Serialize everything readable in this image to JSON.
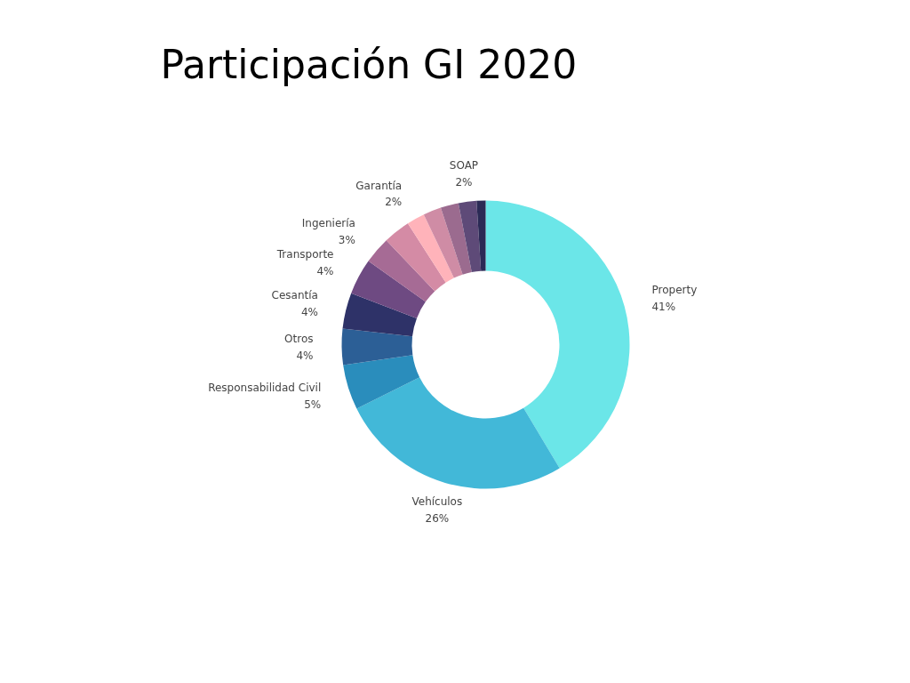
{
  "chart_data": {
    "type": "donut",
    "title": "Participación GI 2020",
    "categories": [
      "Property",
      "Vehículos",
      "Responsabilidad Civil",
      "Otros",
      "Cesantía",
      "Transporte",
      "Ingeniería",
      null,
      "Garantía",
      null,
      null,
      "SOAP",
      null
    ],
    "values": [
      41,
      26,
      5,
      4,
      4,
      4,
      3,
      3,
      2,
      2,
      2,
      2,
      1
    ],
    "value_labels": [
      "41%",
      "26%",
      "5%",
      "4%",
      "4%",
      "4%",
      "3%",
      null,
      "2%",
      null,
      null,
      "2%",
      null
    ],
    "colors": [
      "#6be6e8",
      "#42b8d8",
      "#2a8dbc",
      "#2c5f96",
      "#2e3268",
      "#6e4a82",
      "#a66b95",
      "#d48ba5",
      "#ffb3ba",
      "#cf8ca5",
      "#9b6b8f",
      "#5e4a78",
      "#2b2a55"
    ]
  }
}
